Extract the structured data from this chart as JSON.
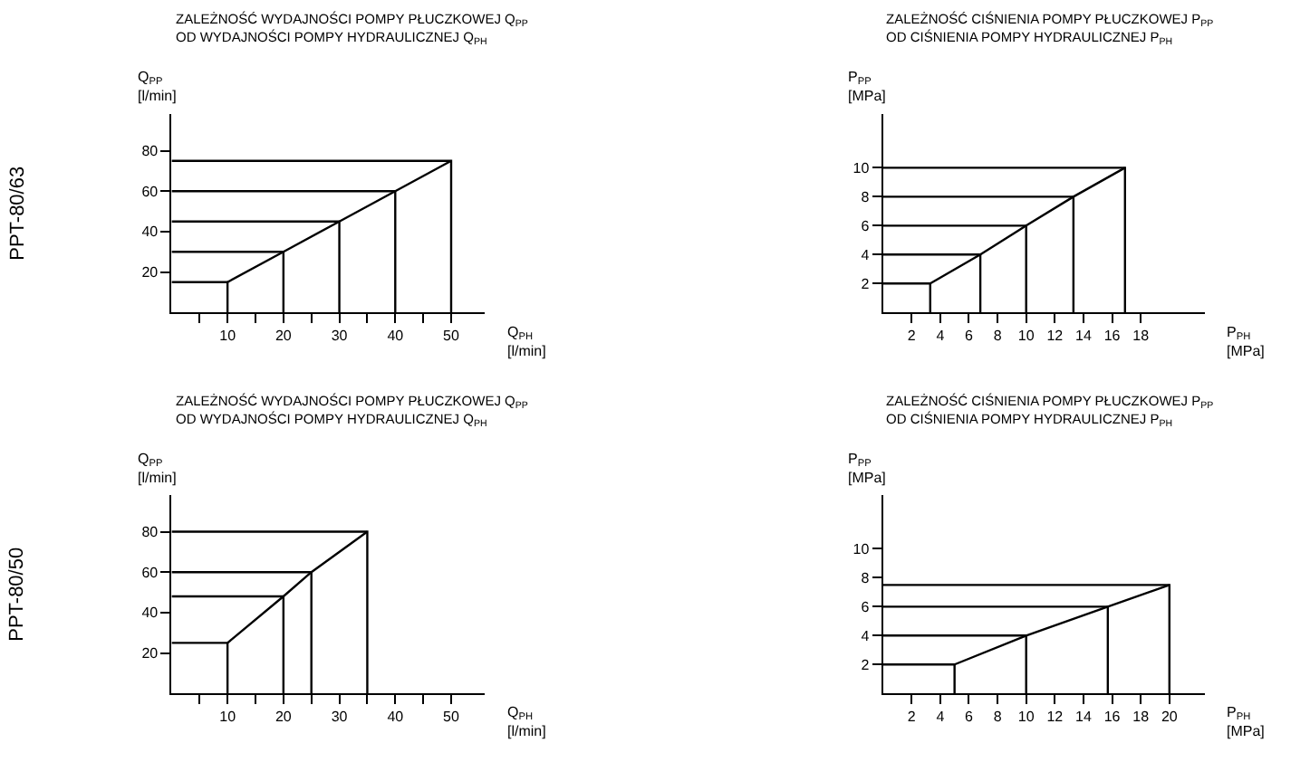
{
  "chart_data": [
    {
      "type": "line",
      "title": "ZALEŻNOŚĆ WYDAJNOŚCI POMPY PŁUCZKOWEJ Q$_{PP}$\nOD WYDAJNOŚCI POMPY HYDRAULICZNEJ Q$_{PH}$",
      "xlabel": "Q$_{PH}$\n[l/min]",
      "ylabel": "Q$_{PP}$\n[l/min]",
      "annotations": [
        "PPT-80/63"
      ],
      "x": [
        10,
        20,
        30,
        40,
        50
      ],
      "series": [
        {
          "color": "#000000",
          "values": [
            15,
            30,
            45,
            60,
            75
          ]
        },
        {
          "color": "#000000",
          "x": [
            0,
            10,
            10
          ],
          "values": [
            15,
            15,
            0
          ]
        },
        {
          "color": "#000000",
          "x": [
            0,
            20,
            20
          ],
          "values": [
            30,
            30,
            0
          ]
        },
        {
          "color": "#000000",
          "x": [
            0,
            30,
            30
          ],
          "values": [
            45,
            45,
            0
          ]
        },
        {
          "color": "#000000",
          "x": [
            0,
            40,
            40
          ],
          "values": [
            60,
            60,
            0
          ]
        },
        {
          "color": "#000000",
          "x": [
            0,
            50,
            50
          ],
          "values": [
            75,
            75,
            0
          ]
        }
      ],
      "xlim": [
        0,
        56
      ],
      "xticks": [
        {
          "value": 5,
          "label": null
        },
        10,
        {
          "value": 15,
          "label": null
        },
        20,
        {
          "value": 25,
          "label": null
        },
        30,
        {
          "value": 35,
          "label": null
        },
        40,
        {
          "value": 45,
          "label": null
        },
        50
      ],
      "ylim": [
        0,
        98
      ],
      "yticks": [
        20,
        40,
        60,
        80
      ],
      "marker": "none",
      "line_style": "solid"
    },
    {
      "type": "line",
      "title": "ZALEŻNOŚĆ CIŚNIENIA POMPY PŁUCZKOWEJ P$_{PP}$\nOD CIŚNIENIA POMPY HYDRAULICZNEJ P$_{PH}$",
      "xlabel": "P$_{PH}$\n[MPa]",
      "ylabel": "P$_{PP}$\n[MPa]",
      "x": [
        3.3,
        6.8,
        10,
        13.3,
        16.9
      ],
      "series": [
        {
          "color": "#000000",
          "values": [
            2,
            4,
            6,
            8,
            10
          ]
        },
        {
          "color": "#000000",
          "x": [
            0,
            3.3,
            3.3
          ],
          "values": [
            2,
            2,
            0
          ]
        },
        {
          "color": "#000000",
          "x": [
            0,
            6.8,
            6.8
          ],
          "values": [
            4,
            4,
            0
          ]
        },
        {
          "color": "#000000",
          "x": [
            0,
            10,
            10
          ],
          "values": [
            6,
            6,
            0
          ]
        },
        {
          "color": "#000000",
          "x": [
            0,
            13.3,
            13.3
          ],
          "values": [
            8,
            8,
            0
          ]
        },
        {
          "color": "#000000",
          "x": [
            0,
            16.9,
            16.9
          ],
          "values": [
            10,
            10,
            0
          ]
        }
      ],
      "xlim": [
        0,
        22.5
      ],
      "xticks": [
        2,
        4,
        6,
        8,
        10,
        12,
        14,
        16,
        18
      ],
      "ylim": [
        0,
        13.7
      ],
      "yticks": [
        2,
        4,
        6,
        8,
        10
      ],
      "marker": "none",
      "line_style": "solid"
    },
    {
      "type": "line",
      "title": "ZALEŻNOŚĆ WYDAJNOŚCI POMPY PŁUCZKOWEJ Q$_{PP}$\nOD WYDAJNOŚCI POMPY HYDRAULICZNEJ Q$_{PH}$",
      "xlabel": "Q$_{PH}$\n[l/min]",
      "ylabel": "Q$_{PP}$\n[l/min]",
      "annotations": [
        "PPT-80/50"
      ],
      "x": [
        10,
        20,
        25,
        35
      ],
      "series": [
        {
          "color": "#000000",
          "values": [
            25,
            48,
            60,
            80
          ]
        },
        {
          "color": "#000000",
          "x": [
            0,
            10,
            10
          ],
          "values": [
            25,
            25,
            0
          ]
        },
        {
          "color": "#000000",
          "x": [
            0,
            20,
            20
          ],
          "values": [
            48,
            48,
            0
          ]
        },
        {
          "color": "#000000",
          "x": [
            0,
            25,
            25
          ],
          "values": [
            60,
            60,
            0
          ]
        },
        {
          "color": "#000000",
          "x": [
            0,
            35,
            35
          ],
          "values": [
            80,
            80,
            0
          ]
        }
      ],
      "xlim": [
        0,
        56
      ],
      "xticks": [
        {
          "value": 5,
          "label": null
        },
        10,
        {
          "value": 15,
          "label": null
        },
        20,
        {
          "value": 25,
          "label": null
        },
        30,
        {
          "value": 35,
          "label": null
        },
        40,
        {
          "value": 45,
          "label": null
        },
        50
      ],
      "ylim": [
        0,
        98
      ],
      "yticks": [
        20,
        40,
        60,
        80
      ],
      "marker": "none",
      "line_style": "solid"
    },
    {
      "type": "line",
      "title": "ZALEŻNOŚĆ CIŚNIENIA POMPY PŁUCZKOWEJ P$_{PP}$\nOD CIŚNIENIA POMPY HYDRAULICZNEJ P$_{PH}$",
      "xlabel": "P$_{PH}$\n[MPa]",
      "ylabel": "P$_{PP}$\n[MPa]",
      "x": [
        5,
        10,
        15.7,
        20
      ],
      "series": [
        {
          "color": "#000000",
          "values": [
            2,
            4,
            6,
            7.5
          ]
        },
        {
          "color": "#000000",
          "x": [
            0,
            5,
            5
          ],
          "values": [
            2,
            2,
            0
          ]
        },
        {
          "color": "#000000",
          "x": [
            0,
            10,
            10
          ],
          "values": [
            4,
            4,
            0
          ]
        },
        {
          "color": "#000000",
          "x": [
            0,
            15.7,
            15.7
          ],
          "values": [
            6,
            6,
            0
          ]
        },
        {
          "color": "#000000",
          "x": [
            0,
            20,
            20
          ],
          "values": [
            7.5,
            7.5,
            0
          ]
        }
      ],
      "xlim": [
        0,
        22.5
      ],
      "xticks": [
        2,
        4,
        6,
        8,
        10,
        12,
        14,
        16,
        18,
        20
      ],
      "ylim": [
        0,
        13.7
      ],
      "yticks": [
        2,
        4,
        6,
        8,
        10
      ],
      "marker": "none",
      "line_style": "solid"
    }
  ]
}
